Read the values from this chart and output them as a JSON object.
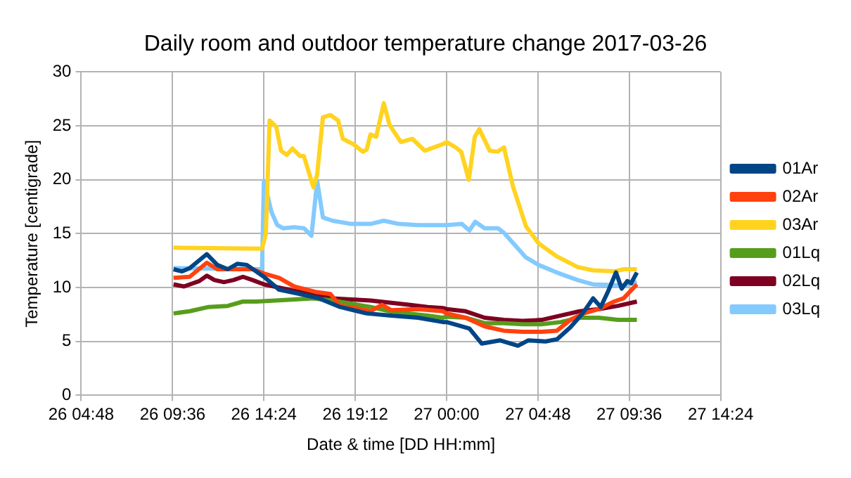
{
  "chart_data": {
    "type": "line",
    "title": "Daily room and outdoor temperature change 2017-03-26",
    "xlabel": "Date & time [DD HH:mm]",
    "ylabel": "Temperature [centigrade]",
    "xlim": [
      "2017-03-26T04:48",
      "2017-03-27T14:24"
    ],
    "xticks": [
      {
        "value": "2017-03-26T04:48",
        "label": "26 04:48"
      },
      {
        "value": "2017-03-26T09:36",
        "label": "26 09:36"
      },
      {
        "value": "2017-03-26T14:24",
        "label": "26 14:24"
      },
      {
        "value": "2017-03-26T19:12",
        "label": "26 19:12"
      },
      {
        "value": "2017-03-27T00:00",
        "label": "27 00:00"
      },
      {
        "value": "2017-03-27T04:48",
        "label": "27 04:48"
      },
      {
        "value": "2017-03-27T09:36",
        "label": "27 09:36"
      },
      {
        "value": "2017-03-27T14:24",
        "label": "27 14:24"
      }
    ],
    "ylim": [
      0,
      30
    ],
    "yticks": [
      0,
      5,
      10,
      15,
      20,
      25,
      30
    ],
    "grid": true,
    "legend": "right",
    "marker": "none",
    "line_style": "solid",
    "series": [
      {
        "name": "01Ar",
        "color": "#004586",
        "x": [
          "2017-03-26T09:39",
          "2017-03-26T10:06",
          "2017-03-26T10:30",
          "2017-03-26T11:24",
          "2017-03-26T11:57",
          "2017-03-26T12:30",
          "2017-03-26T13:00",
          "2017-03-26T13:30",
          "2017-03-26T14:24",
          "2017-03-26T15:12",
          "2017-03-26T16:18",
          "2017-03-26T17:18",
          "2017-03-26T18:24",
          "2017-03-26T19:48",
          "2017-03-26T21:06",
          "2017-03-26T22:30",
          "2017-03-26T23:48",
          "2017-03-27T00:00",
          "2017-03-27T01:12",
          "2017-03-27T01:51",
          "2017-03-27T02:48",
          "2017-03-27T03:45",
          "2017-03-27T04:18",
          "2017-03-27T05:12",
          "2017-03-27T05:48",
          "2017-03-27T06:30",
          "2017-03-27T07:09",
          "2017-03-27T07:42",
          "2017-03-27T08:06",
          "2017-03-27T08:30",
          "2017-03-27T08:54",
          "2017-03-27T09:12",
          "2017-03-27T09:30",
          "2017-03-27T09:42",
          "2017-03-27T10:00"
        ],
        "values": [
          11.7,
          11.5,
          11.8,
          13.1,
          12.1,
          11.7,
          12.2,
          12.1,
          11.0,
          9.8,
          9.4,
          9.0,
          8.2,
          7.6,
          7.4,
          7.2,
          6.8,
          6.8,
          6.2,
          4.8,
          5.1,
          4.6,
          5.1,
          5.0,
          5.2,
          6.3,
          7.6,
          9.0,
          8.2,
          9.7,
          11.4,
          9.9,
          10.6,
          10.4,
          11.4
        ]
      },
      {
        "name": "02Ar",
        "color": "#ff420e",
        "x": [
          "2017-03-26T09:39",
          "2017-03-26T10:30",
          "2017-03-26T11:24",
          "2017-03-26T11:57",
          "2017-03-26T13:00",
          "2017-03-26T13:48",
          "2017-03-26T14:24",
          "2017-03-26T15:12",
          "2017-03-26T16:00",
          "2017-03-26T17:06",
          "2017-03-26T17:54",
          "2017-03-26T18:24",
          "2017-03-26T19:12",
          "2017-03-26T20:00",
          "2017-03-26T20:36",
          "2017-03-26T21:06",
          "2017-03-26T22:30",
          "2017-03-26T23:48",
          "2017-03-27T00:00",
          "2017-03-27T01:00",
          "2017-03-27T02:00",
          "2017-03-27T03:00",
          "2017-03-27T04:00",
          "2017-03-27T05:00",
          "2017-03-27T05:48",
          "2017-03-27T06:30",
          "2017-03-27T07:12",
          "2017-03-27T08:00",
          "2017-03-27T08:48",
          "2017-03-27T09:18",
          "2017-03-27T10:00"
        ],
        "values": [
          10.9,
          11.0,
          12.3,
          11.7,
          11.7,
          11.7,
          11.3,
          10.9,
          10.1,
          9.6,
          9.4,
          8.3,
          8.1,
          7.8,
          8.4,
          7.9,
          8.0,
          7.8,
          7.6,
          7.2,
          6.4,
          6.0,
          5.9,
          5.9,
          6.0,
          7.0,
          7.6,
          8.0,
          8.7,
          9.0,
          10.3
        ]
      },
      {
        "name": "03Ar",
        "color": "#ffd320",
        "x": [
          "2017-03-26T09:39",
          "2017-03-26T14:18",
          "2017-03-26T14:30",
          "2017-03-26T14:42",
          "2017-03-26T15:03",
          "2017-03-26T15:18",
          "2017-03-26T15:36",
          "2017-03-26T15:54",
          "2017-03-26T16:18",
          "2017-03-26T16:30",
          "2017-03-26T17:00",
          "2017-03-26T17:12",
          "2017-03-26T17:30",
          "2017-03-26T17:54",
          "2017-03-26T18:18",
          "2017-03-26T18:33",
          "2017-03-26T19:06",
          "2017-03-26T19:36",
          "2017-03-26T19:48",
          "2017-03-26T20:00",
          "2017-03-26T20:18",
          "2017-03-26T20:42",
          "2017-03-26T21:00",
          "2017-03-26T21:36",
          "2017-03-26T22:12",
          "2017-03-26T22:51",
          "2017-03-26T23:48",
          "2017-03-27T00:00",
          "2017-03-27T00:29",
          "2017-03-27T00:46",
          "2017-03-27T01:10",
          "2017-03-27T01:29",
          "2017-03-27T01:43",
          "2017-03-27T02:16",
          "2017-03-27T02:40",
          "2017-03-27T03:01",
          "2017-03-27T03:29",
          "2017-03-27T04:10",
          "2017-03-27T04:50",
          "2017-03-27T05:47",
          "2017-03-27T06:53",
          "2017-03-27T07:41",
          "2017-03-27T08:47",
          "2017-03-27T09:19",
          "2017-03-27T10:00"
        ],
        "values": [
          13.7,
          13.6,
          15,
          25.5,
          24.9,
          22.7,
          22.3,
          22.9,
          22.2,
          22.2,
          19.3,
          20.5,
          25.8,
          26.0,
          25.5,
          23.8,
          23.3,
          22.6,
          22.8,
          24.2,
          24.0,
          27.1,
          25.1,
          23.5,
          23.8,
          22.7,
          23.3,
          23.5,
          23.0,
          22.6,
          20.0,
          24.0,
          24.7,
          22.7,
          22.6,
          23.0,
          19.4,
          15.7,
          14.1,
          12.9,
          11.9,
          11.6,
          11.5,
          11.7,
          11.7
        ]
      },
      {
        "name": "01Lq",
        "color": "#579d1c",
        "x": [
          "2017-03-26T09:39",
          "2017-03-26T10:30",
          "2017-03-26T11:30",
          "2017-03-26T12:30",
          "2017-03-26T13:18",
          "2017-03-26T14:00",
          "2017-03-26T15:00",
          "2017-03-26T16:00",
          "2017-03-26T17:00",
          "2017-03-26T18:00",
          "2017-03-26T19:00",
          "2017-03-26T20:00",
          "2017-03-26T21:00",
          "2017-03-26T22:00",
          "2017-03-26T23:00",
          "2017-03-26T23:48",
          "2017-03-27T00:00",
          "2017-03-27T01:00",
          "2017-03-27T02:00",
          "2017-03-27T03:00",
          "2017-03-27T04:00",
          "2017-03-27T05:00",
          "2017-03-27T06:00",
          "2017-03-27T07:00",
          "2017-03-27T08:00",
          "2017-03-27T09:00",
          "2017-03-27T10:00"
        ],
        "values": [
          7.6,
          7.8,
          8.2,
          8.3,
          8.7,
          8.7,
          8.8,
          8.9,
          9.0,
          8.8,
          8.5,
          8.2,
          7.8,
          7.6,
          7.4,
          7.2,
          7.3,
          7.2,
          6.7,
          6.7,
          6.6,
          6.6,
          6.8,
          7.2,
          7.2,
          7.0,
          7.0
        ]
      },
      {
        "name": "02Lq",
        "color": "#7e0021",
        "x": [
          "2017-03-26T09:39",
          "2017-03-26T10:12",
          "2017-03-26T11:00",
          "2017-03-26T11:24",
          "2017-03-26T11:48",
          "2017-03-26T12:18",
          "2017-03-26T12:48",
          "2017-03-26T13:18",
          "2017-03-26T13:48",
          "2017-03-26T14:24",
          "2017-03-26T15:12",
          "2017-03-26T16:00",
          "2017-03-26T17:00",
          "2017-03-26T18:00",
          "2017-03-26T19:00",
          "2017-03-26T20:00",
          "2017-03-26T21:00",
          "2017-03-26T22:00",
          "2017-03-26T23:00",
          "2017-03-26T23:48",
          "2017-03-27T00:00",
          "2017-03-27T01:00",
          "2017-03-27T02:00",
          "2017-03-27T03:00",
          "2017-03-27T04:00",
          "2017-03-27T05:00",
          "2017-03-27T06:00",
          "2017-03-27T07:00",
          "2017-03-27T08:00",
          "2017-03-27T09:00",
          "2017-03-27T10:00"
        ],
        "values": [
          10.3,
          10.1,
          10.6,
          11.1,
          10.7,
          10.5,
          10.7,
          11.0,
          10.7,
          10.3,
          10.0,
          9.7,
          9.4,
          9.0,
          8.9,
          8.8,
          8.6,
          8.4,
          8.2,
          8.1,
          8.0,
          7.8,
          7.2,
          7.0,
          6.9,
          7.0,
          7.4,
          7.8,
          8.0,
          8.3,
          8.7
        ]
      },
      {
        "name": "03Lq",
        "color": "#83caff",
        "x": [
          "2017-03-26T09:39",
          "2017-03-26T14:18",
          "2017-03-26T14:24",
          "2017-03-26T14:48",
          "2017-03-26T15:06",
          "2017-03-26T15:24",
          "2017-03-26T16:00",
          "2017-03-26T16:30",
          "2017-03-26T16:54",
          "2017-03-26T17:12",
          "2017-03-26T17:30",
          "2017-03-26T18:00",
          "2017-03-26T19:00",
          "2017-03-26T20:00",
          "2017-03-26T20:42",
          "2017-03-26T21:30",
          "2017-03-26T22:30",
          "2017-03-26T23:30",
          "2017-03-27T00:00",
          "2017-03-27T00:48",
          "2017-03-27T01:12",
          "2017-03-27T01:30",
          "2017-03-27T02:00",
          "2017-03-27T02:42",
          "2017-03-27T03:00",
          "2017-03-27T04:10",
          "2017-03-27T04:50",
          "2017-03-27T05:47",
          "2017-03-27T06:53",
          "2017-03-27T07:41",
          "2017-03-27T09:19",
          "2017-03-27T10:00"
        ],
        "values": [
          11.8,
          11.7,
          19.9,
          17.0,
          15.8,
          15.5,
          15.6,
          15.5,
          14.8,
          19.9,
          16.5,
          16.2,
          15.9,
          15.9,
          16.2,
          15.9,
          15.8,
          15.8,
          15.8,
          15.9,
          15.3,
          16.1,
          15.5,
          15.5,
          15.1,
          12.8,
          12.1,
          11.4,
          10.7,
          10.3,
          10.2,
          10.5
        ]
      }
    ]
  }
}
